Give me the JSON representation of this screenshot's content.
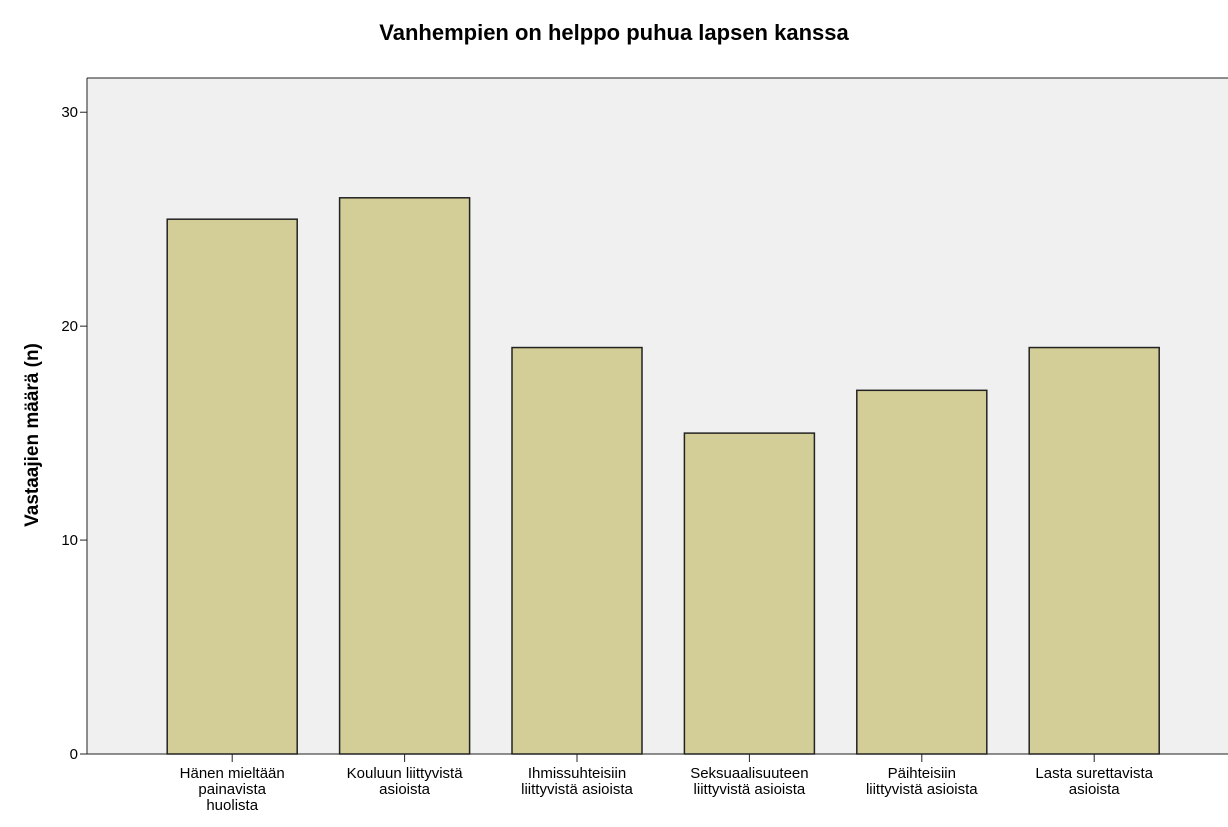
{
  "chart_data": {
    "type": "bar",
    "title": "Vanhempien on helppo puhua lapsen kanssa",
    "y_label": "Vastaajien määrä (n)",
    "categories": [
      "Hänen mieltään\npainavista\nhuolista",
      "Kouluun liittyvistä\nasioista",
      "Ihmissuhteisiin\nliittyvistä asioista",
      "Seksuaalisuuteen\nliittyvistä asioista",
      "Päihteisiin\nliittyvistä asioista",
      "Lasta surettavista\nasioista"
    ],
    "values": [
      25,
      26,
      19,
      15,
      17,
      19
    ],
    "color": "#d3ce97",
    "ylim": [
      0,
      31.6
    ],
    "yticks": [
      0,
      10,
      20,
      30
    ],
    "grid": false
  }
}
